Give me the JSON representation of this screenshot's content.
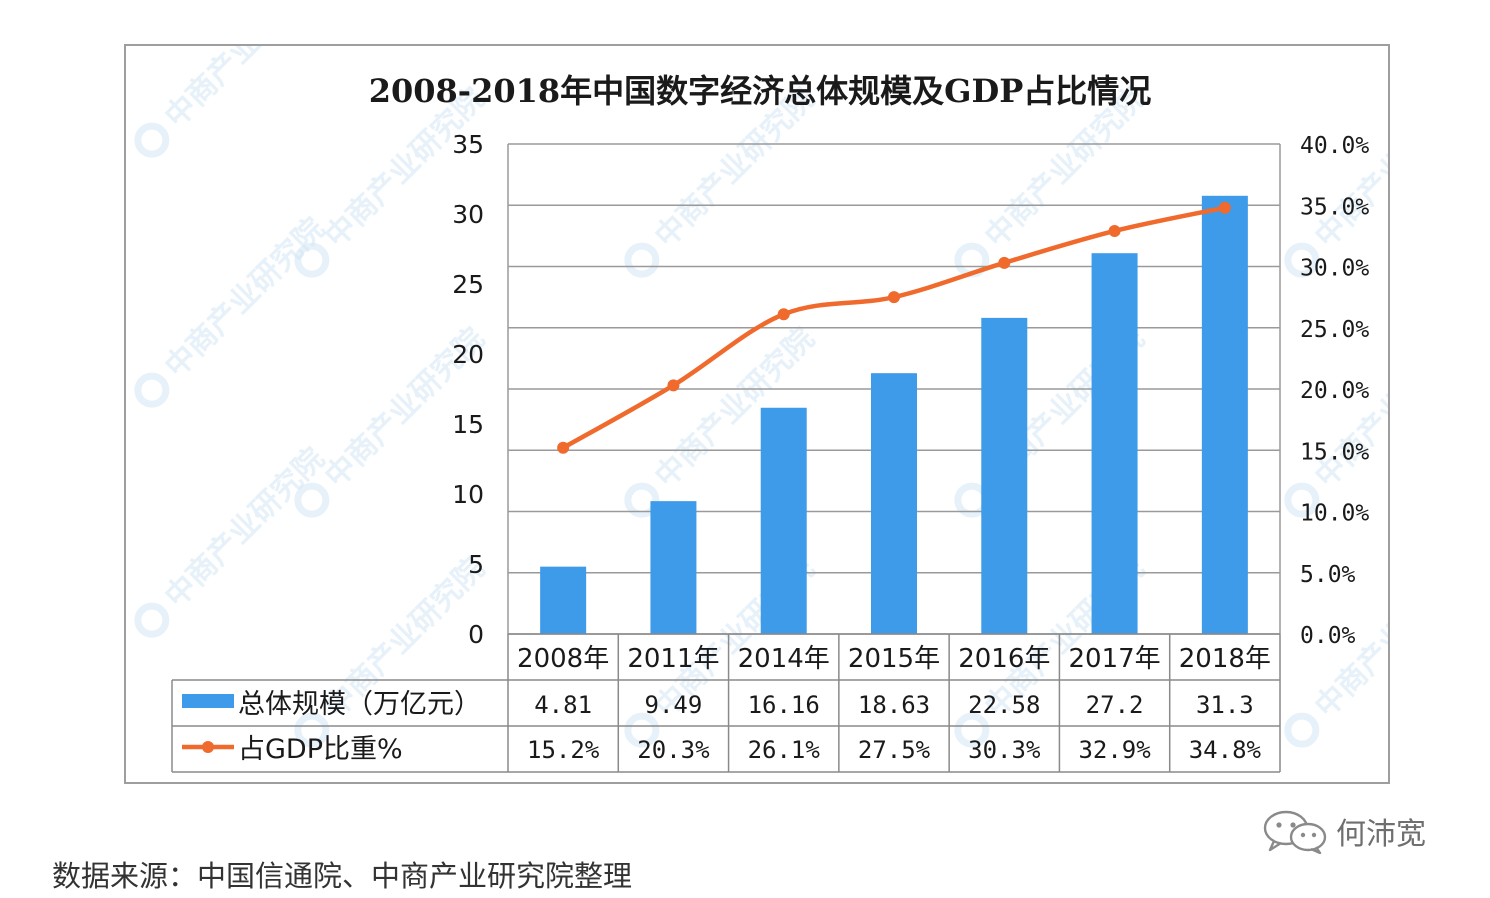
{
  "chart_data": {
    "type": "bar",
    "title": "2008-2018年中国数字经济总体规模及GDP占比情况",
    "categories": [
      "2008年",
      "2011年",
      "2014年",
      "2015年",
      "2016年",
      "2017年",
      "2018年"
    ],
    "series": [
      {
        "name": "总体规模（万亿元）",
        "type": "bar",
        "axis": "left",
        "values": [
          4.81,
          9.49,
          16.16,
          18.63,
          22.58,
          27.2,
          31.3
        ],
        "labels": [
          "4.81",
          "9.49",
          "16.16",
          "18.63",
          "22.58",
          "27.2",
          "31.3"
        ],
        "color": "#3d9be9"
      },
      {
        "name": "占GDP比重%",
        "type": "line",
        "axis": "right",
        "values": [
          15.2,
          20.3,
          26.1,
          27.5,
          30.3,
          32.9,
          34.8
        ],
        "labels": [
          "15.2%",
          "20.3%",
          "26.1%",
          "27.5%",
          "30.3%",
          "32.9%",
          "34.8%"
        ],
        "color": "#ef6a2c"
      }
    ],
    "y_left": {
      "ylim": [
        0,
        35
      ],
      "ticks": [
        0,
        5,
        10,
        15,
        20,
        25,
        30,
        35
      ],
      "tick_labels": [
        "0",
        "5",
        "10",
        "15",
        "20",
        "25",
        "30",
        "35"
      ]
    },
    "y_right": {
      "ylim": [
        0,
        40
      ],
      "ticks": [
        0,
        5,
        10,
        15,
        20,
        25,
        30,
        35,
        40
      ],
      "tick_labels": [
        "0.0%",
        "5.0%",
        "10.0%",
        "15.0%",
        "20.0%",
        "25.0%",
        "30.0%",
        "35.0%",
        "40.0%"
      ]
    },
    "grid": true,
    "legend": "data-table-left",
    "data_table": true
  },
  "watermark": "中商产业研究院",
  "source_note": "数据来源：中国信通院、中商产业研究院整理",
  "wechat_account": "何沛宽",
  "colors": {
    "bar": "#3d9be9",
    "line": "#ef6a2c",
    "grid": "#9a9a9a",
    "watermark": "#d4e6f5"
  }
}
